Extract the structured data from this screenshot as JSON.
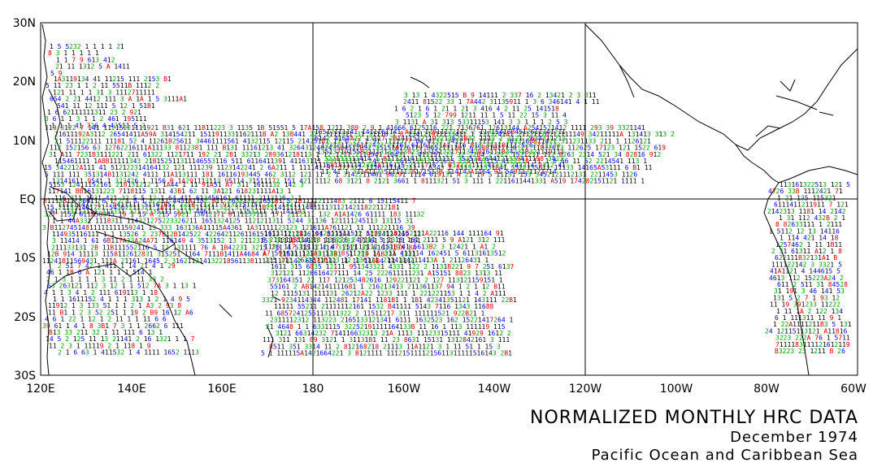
{
  "map": {
    "lat_labels": [
      "30N",
      "20N",
      "10N",
      "EQ",
      "10S",
      "20S",
      "30S"
    ],
    "lon_labels": [
      "120E",
      "140E",
      "160E",
      "180",
      "160W",
      "140W",
      "120W",
      "100W",
      "80W",
      "60W"
    ],
    "lon_range_deg_east": [
      120,
      300
    ],
    "lat_range": [
      -30,
      30
    ],
    "gridlines": {
      "longitudes": [
        "180",
        "120W"
      ],
      "latitudes": [
        "EQ"
      ]
    },
    "value_colors": {
      "1": "#000000",
      "2": "#00a000",
      "3": "#00a000",
      "4": "#0000e0",
      "5": "#0000e0",
      "6": "#0000e0",
      "high": "#e00000"
    },
    "colors": {
      "axes": "#000000",
      "coast": "#000000",
      "background": "#ffffff"
    }
  },
  "title": {
    "line1": "NORMALIZED MONTHLY HRC DATA",
    "line2": "December 1974",
    "line3": "Pacific Ocean and Caribbean Sea"
  }
}
